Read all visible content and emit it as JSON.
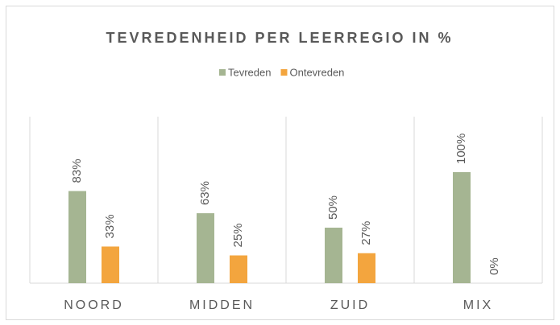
{
  "chart_data": {
    "type": "bar",
    "title": "TEVREDENHEID PER LEERREGIO IN %",
    "categories": [
      "NOORD",
      "MIDDEN",
      "ZUID",
      "MIX"
    ],
    "series": [
      {
        "name": "Tevreden",
        "color": "#a5b592",
        "values": [
          83,
          63,
          50,
          100
        ],
        "value_labels": [
          "83%",
          "63%",
          "50%",
          "100%"
        ]
      },
      {
        "name": "Ontevreden",
        "color": "#f3a53e",
        "values": [
          33,
          25,
          27,
          0
        ],
        "value_labels": [
          "33%",
          "25%",
          "27%",
          "0%"
        ]
      }
    ],
    "ylim": [
      0,
      150
    ],
    "legend": "top"
  }
}
